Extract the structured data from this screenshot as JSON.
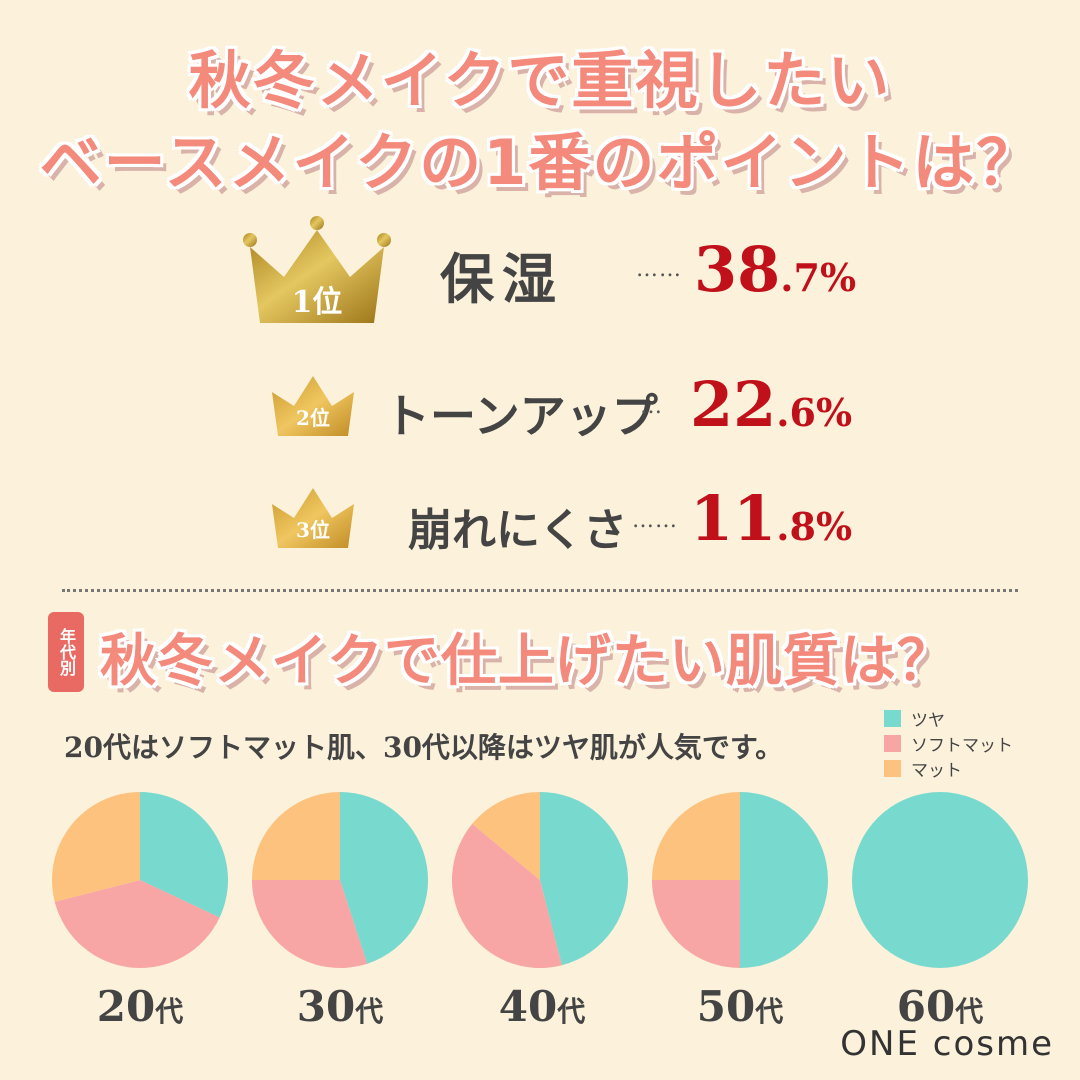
{
  "header": {
    "title_line1": "秋冬メイクで重視したい",
    "title_line2": "ベースメイクの1番のポイントは？"
  },
  "ranking": [
    {
      "rank_label": "1位",
      "name": "保湿",
      "dots": "……",
      "percent_main": "38",
      "percent_sub": ".7%",
      "value": 38.7
    },
    {
      "rank_label": "2位",
      "name": "トーンアップ",
      "dots": "…",
      "percent_main": "22",
      "percent_sub": ".6%",
      "value": 22.6
    },
    {
      "rank_label": "3位",
      "name": "崩れにくさ",
      "dots": "……",
      "percent_main": "11",
      "percent_sub": ".8%",
      "value": 11.8
    }
  ],
  "section2": {
    "tag": "年代別",
    "title": "秋冬メイクで仕上げたい肌質は？",
    "note": "20代はソフトマット肌、30代以降はツヤ肌が人気です。"
  },
  "colors": {
    "tsuya": "#78d9cf",
    "soft_matte": "#f8a5a5",
    "matte": "#fcc27e",
    "percent_red": "#c0101a",
    "title_pink": "#f48a7c",
    "gold": "#c9a33a"
  },
  "chart_data": {
    "type": "pie",
    "legend": [
      "ツヤ",
      "ソフトマット",
      "マット"
    ],
    "legend_position": "top-right",
    "categories": [
      "20代",
      "30代",
      "40代",
      "50代",
      "60代"
    ],
    "age_labels": [
      {
        "num": "20",
        "suffix": "代"
      },
      {
        "num": "30",
        "suffix": "代"
      },
      {
        "num": "40",
        "suffix": "代"
      },
      {
        "num": "50",
        "suffix": "代"
      },
      {
        "num": "60",
        "suffix": "代"
      }
    ],
    "series": [
      {
        "name": "ツヤ",
        "values": [
          32,
          45,
          46,
          50,
          100
        ]
      },
      {
        "name": "ソフトマット",
        "values": [
          39,
          30,
          40,
          25,
          0
        ]
      },
      {
        "name": "マット",
        "values": [
          29,
          25,
          14,
          25,
          0
        ]
      }
    ]
  },
  "brand": "ONE cosme"
}
